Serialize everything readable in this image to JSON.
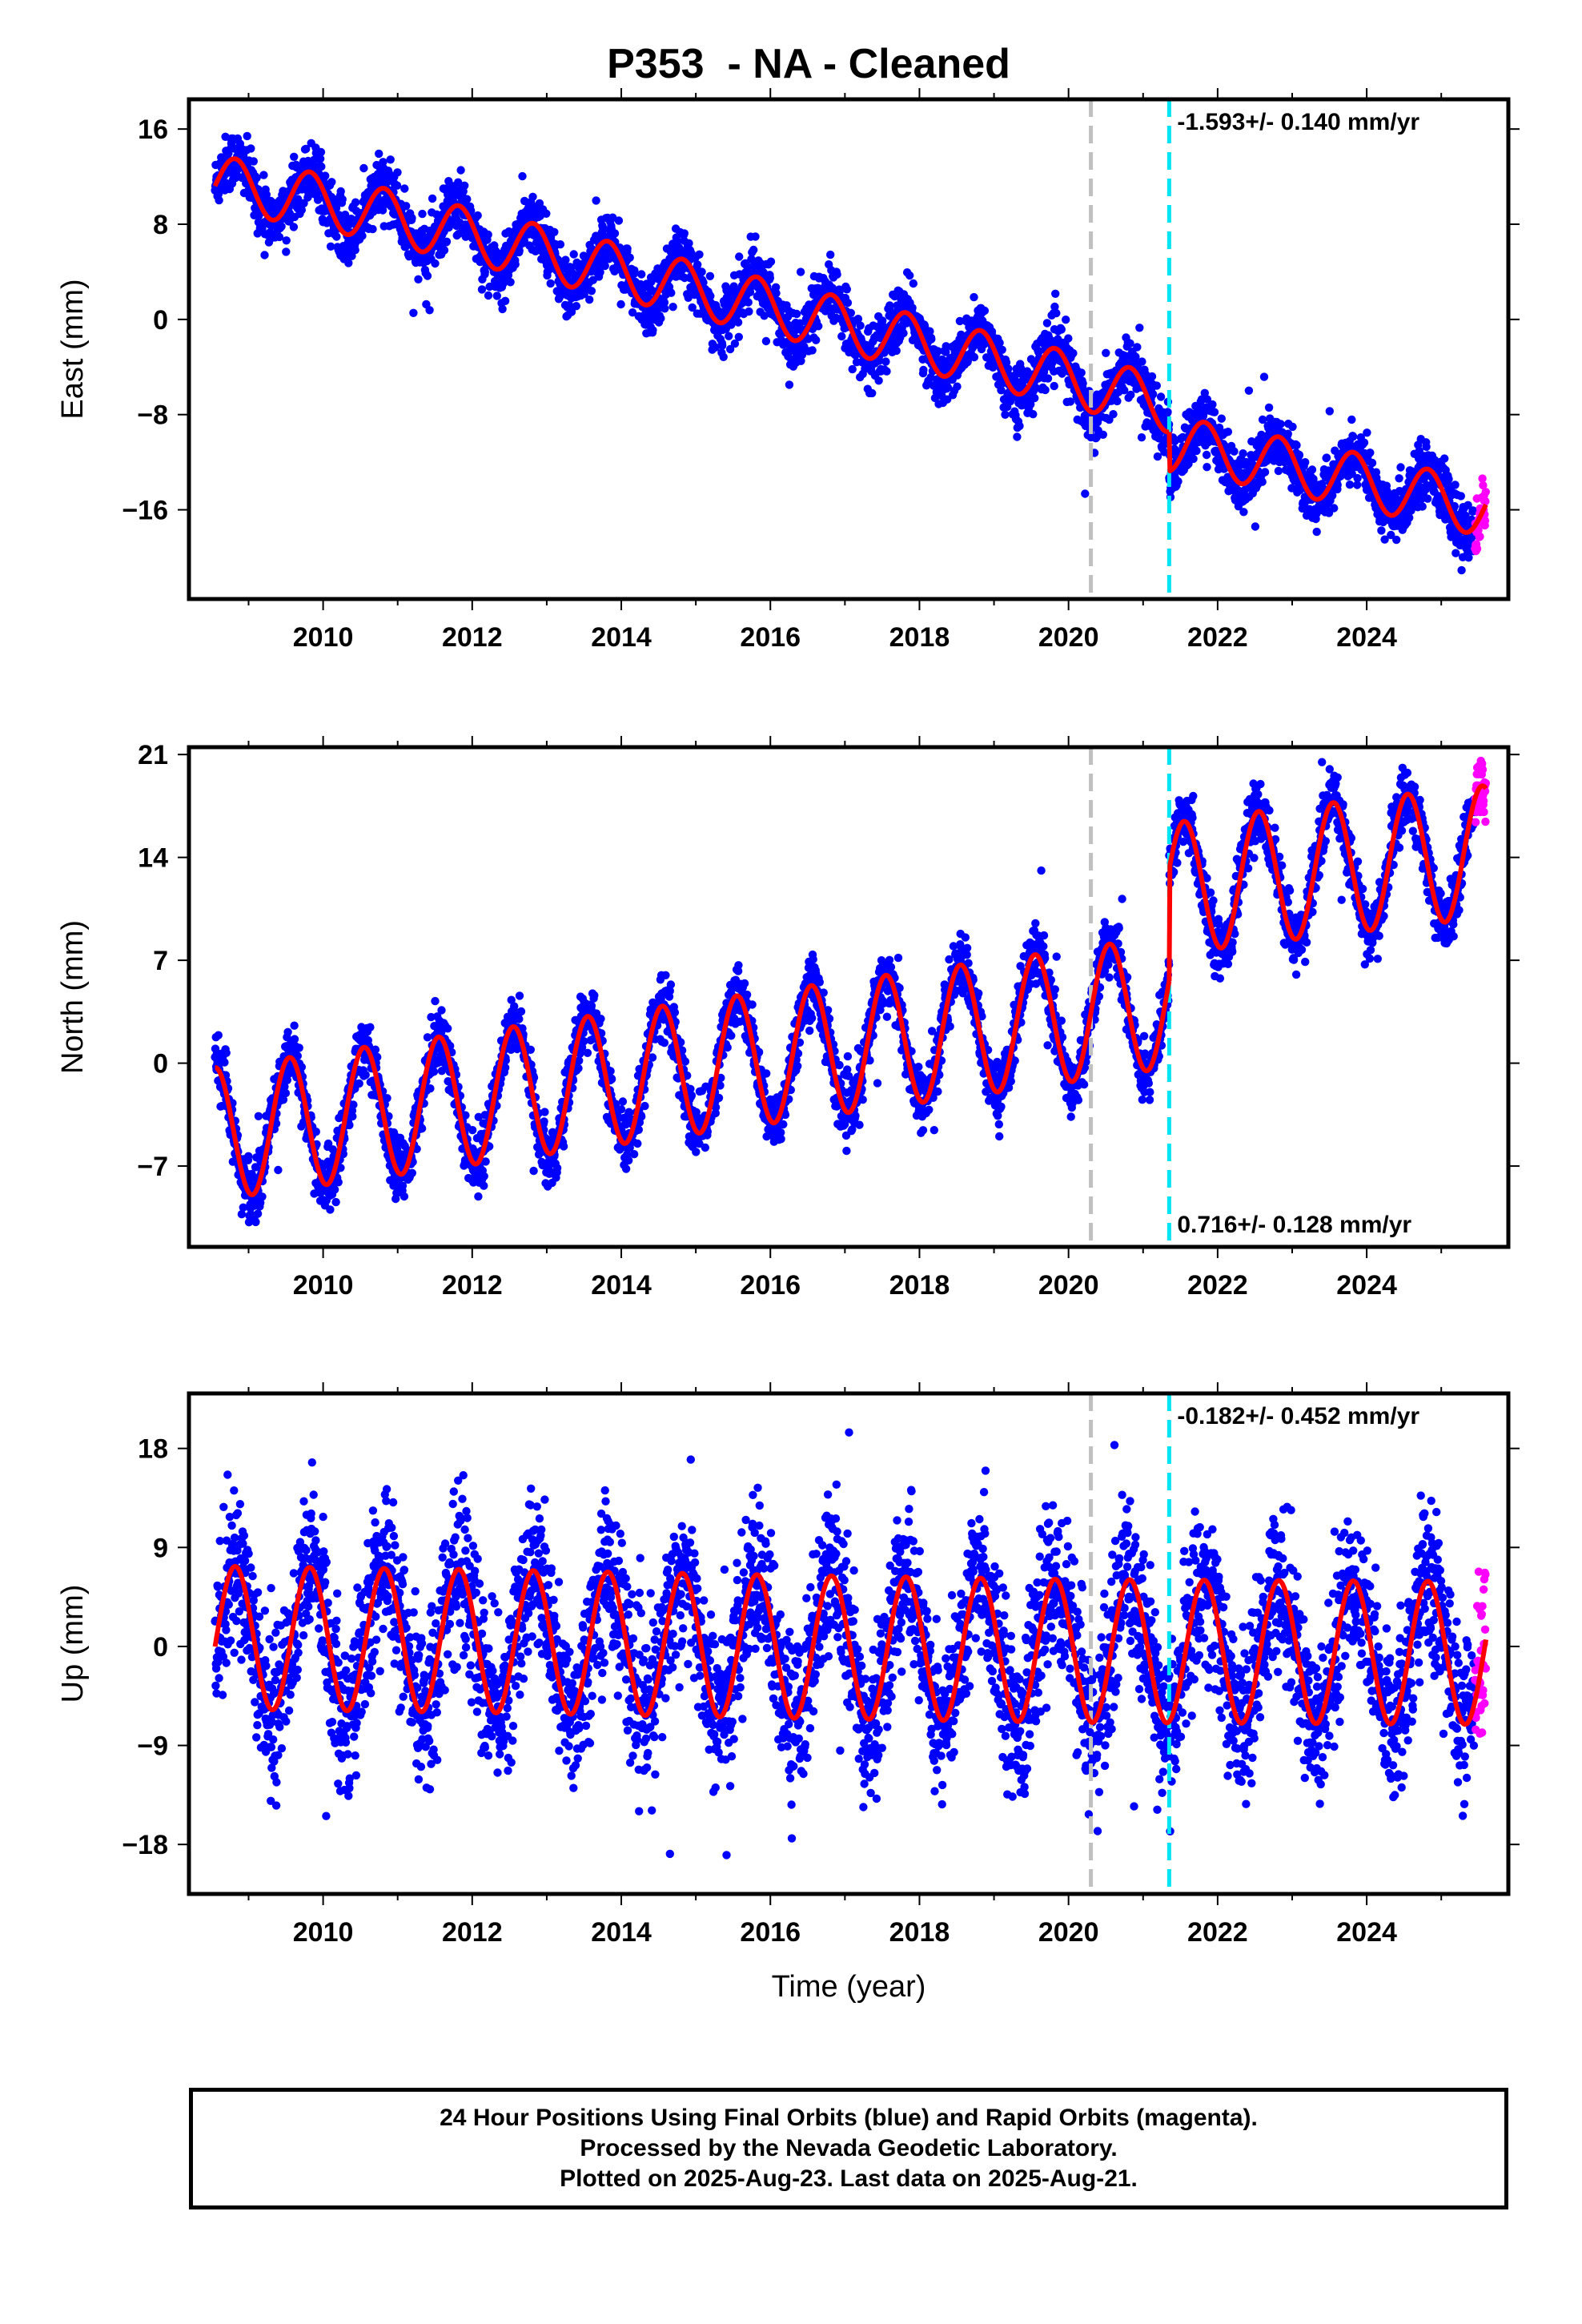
{
  "title": "P353  - NA - Cleaned",
  "colors": {
    "final_orbits": "#0000ff",
    "rapid_orbits": "#ff00ff",
    "model": "#ff0000",
    "event_gray": "#c0c0c0",
    "event_cyan": "#00e5f5"
  },
  "chart_data": [
    {
      "type": "scatter",
      "panel": "east",
      "ylabel": "East (mm)",
      "xlabel": "",
      "xlim": [
        2008.2,
        2025.9
      ],
      "ylim": [
        -23.5,
        18.5
      ],
      "yticks": [
        -16,
        -8,
        0,
        8,
        16
      ],
      "xticks": [
        2010,
        2012,
        2014,
        2016,
        2018,
        2020,
        2022,
        2024
      ],
      "rate_text": "-1.593+/- 0.140 mm/yr",
      "rate_position": "top-right",
      "events": [
        {
          "x": 2020.3,
          "style": "gray-dashed"
        },
        {
          "x": 2021.35,
          "style": "cyan-dashed"
        }
      ],
      "data_start": 2008.55,
      "data_end": 2025.6,
      "rapid_start": 2025.45,
      "model": {
        "segments": [
          {
            "t0": 2008.55,
            "t1": 2021.35,
            "points": [
              [
                2008.55,
                11.5
              ],
              [
                2010.0,
                9.9
              ],
              [
                2012.0,
                7.0
              ],
              [
                2014.0,
                4.0
              ],
              [
                2016.0,
                1.0
              ],
              [
                2018.0,
                -2.0
              ],
              [
                2020.0,
                -5.0
              ],
              [
                2021.35,
                -7.2
              ]
            ]
          },
          {
            "t0": 2021.35,
            "t1": 2025.6,
            "points": [
              [
                2021.35,
                -10.5
              ],
              [
                2022.0,
                -11.1
              ],
              [
                2024.0,
                -13.7
              ],
              [
                2025.6,
                -16.0
              ]
            ]
          }
        ],
        "annual_amplitude": 2.3,
        "peak_phase": 0.82
      },
      "noise_sd": 1.2
    },
    {
      "type": "scatter",
      "panel": "north",
      "ylabel": "North (mm)",
      "xlabel": "",
      "xlim": [
        2008.2,
        2025.9
      ],
      "ylim": [
        -12.5,
        21.5
      ],
      "yticks": [
        -7,
        0,
        7,
        14,
        21
      ],
      "xticks": [
        2010,
        2012,
        2014,
        2016,
        2018,
        2020,
        2022,
        2024
      ],
      "rate_text": "0.716+/- 0.128 mm/yr",
      "rate_position": "bottom-right",
      "events": [
        {
          "x": 2020.3,
          "style": "gray-dashed"
        },
        {
          "x": 2021.35,
          "style": "cyan-dashed"
        }
      ],
      "data_start": 2008.55,
      "data_end": 2025.6,
      "rapid_start": 2025.45,
      "model": {
        "segments": [
          {
            "t0": 2008.55,
            "t1": 2021.35,
            "points": [
              [
                2008.55,
                -4.8
              ],
              [
                2010.0,
                -3.8
              ],
              [
                2012.0,
                -2.4
              ],
              [
                2014.0,
                -1.0
              ],
              [
                2016.0,
                0.4
              ],
              [
                2018.0,
                1.8
              ],
              [
                2020.0,
                3.2
              ],
              [
                2021.35,
                4.2
              ]
            ]
          },
          {
            "t0": 2021.35,
            "t1": 2025.6,
            "points": [
              [
                2021.35,
                11.8
              ],
              [
                2022.0,
                12.3
              ],
              [
                2024.0,
                13.5
              ],
              [
                2025.6,
                14.4
              ]
            ]
          }
        ],
        "annual_amplitude": 4.5,
        "peak_phase": 0.55
      },
      "noise_sd": 1.0
    },
    {
      "type": "scatter",
      "panel": "up",
      "ylabel": "Up (mm)",
      "xlabel": "Time (year)",
      "xlim": [
        2008.2,
        2025.9
      ],
      "ylim": [
        -22.5,
        23.0
      ],
      "yticks": [
        -18,
        -9,
        0,
        9,
        18
      ],
      "xticks": [
        2010,
        2012,
        2014,
        2016,
        2018,
        2020,
        2022,
        2024
      ],
      "rate_text": "-0.182+/- 0.452 mm/yr",
      "rate_position": "top-right",
      "events": [
        {
          "x": 2020.3,
          "style": "gray-dashed"
        },
        {
          "x": 2021.35,
          "style": "cyan-dashed"
        }
      ],
      "data_start": 2008.55,
      "data_end": 2025.6,
      "rapid_start": 2025.45,
      "model": {
        "segments": [
          {
            "t0": 2008.55,
            "t1": 2025.6,
            "points": [
              [
                2008.55,
                0.8
              ],
              [
                2012.0,
                0.5
              ],
              [
                2016.0,
                0.0
              ],
              [
                2020.0,
                -0.4
              ],
              [
                2025.6,
                -0.6
              ]
            ]
          }
        ],
        "annual_amplitude": 6.5,
        "peak_phase": 0.82
      },
      "noise_sd": 3.6
    }
  ],
  "footer": {
    "line1": "24 Hour Positions Using Final Orbits (blue) and Rapid Orbits (magenta).",
    "line2": "Processed by the Nevada Geodetic Laboratory.",
    "line3": "Plotted on 2025-Aug-23. Last data on 2025-Aug-21."
  }
}
